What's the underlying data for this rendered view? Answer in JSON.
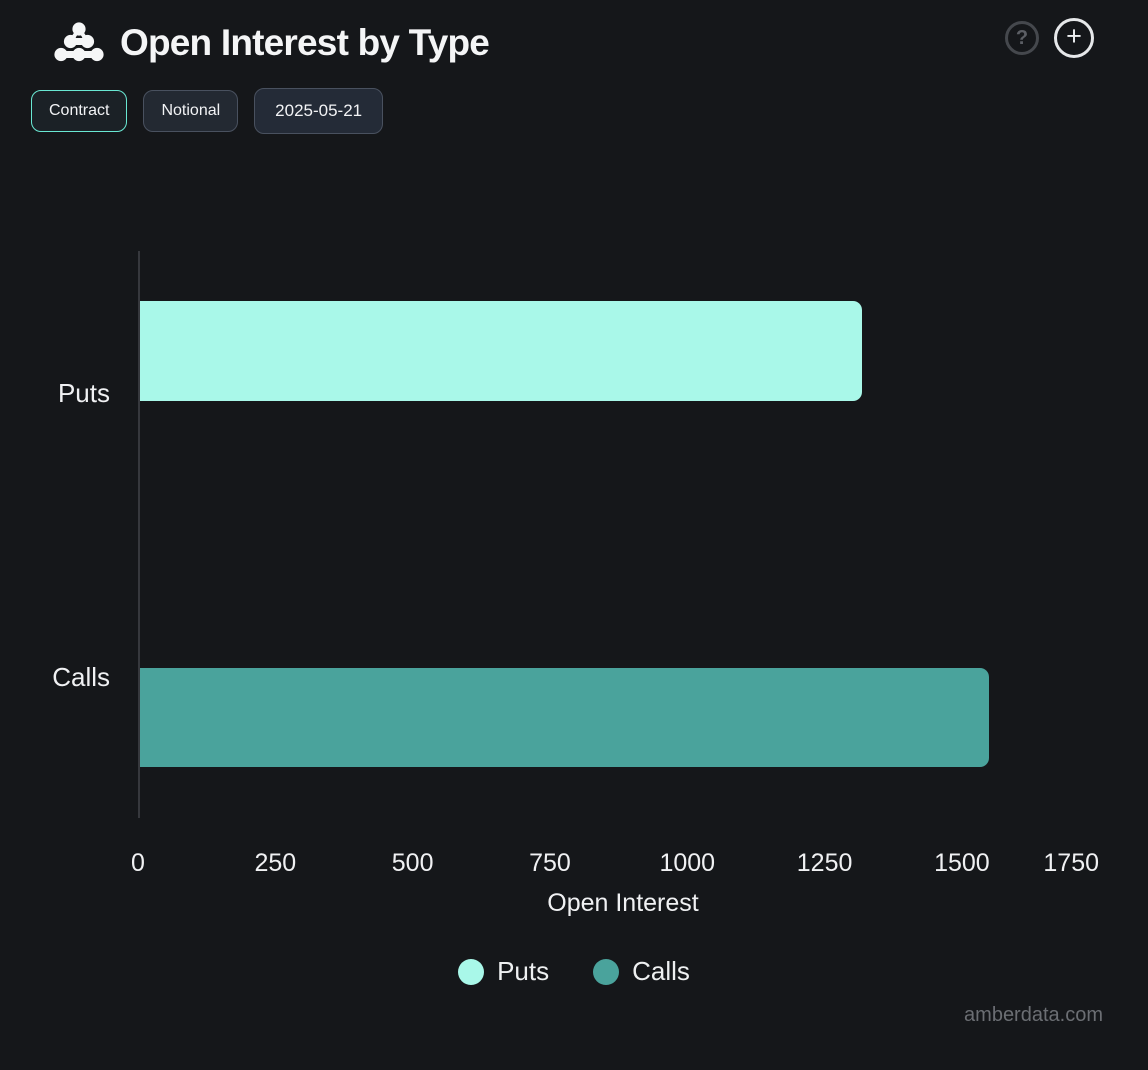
{
  "header": {
    "title": "Open Interest by Type",
    "logo": "amberdata-logo",
    "help_glyph": "?",
    "add_glyph": "+"
  },
  "toolbar": {
    "buttons": [
      {
        "label": "Contract",
        "active": true
      },
      {
        "label": "Notional",
        "active": false
      },
      {
        "label": "2025-05-21",
        "active": false
      }
    ]
  },
  "chart_data": {
    "type": "bar",
    "orientation": "horizontal",
    "title": "Open Interest by Type",
    "categories": [
      "Puts",
      "Calls"
    ],
    "series": [
      {
        "name": "Puts",
        "value": 1315,
        "color": "#a9f8e9"
      },
      {
        "name": "Calls",
        "value": 1545,
        "color": "#4aa39c"
      }
    ],
    "xlabel": "Open Interest",
    "xticks": [
      0,
      250,
      500,
      750,
      1000,
      1250,
      1500,
      1750
    ],
    "xlim": [
      0,
      1766
    ],
    "grid": false,
    "legend": {
      "position": "bottom",
      "items": [
        "Puts",
        "Calls"
      ]
    }
  },
  "footer": {
    "watermark": "amberdata.com"
  }
}
